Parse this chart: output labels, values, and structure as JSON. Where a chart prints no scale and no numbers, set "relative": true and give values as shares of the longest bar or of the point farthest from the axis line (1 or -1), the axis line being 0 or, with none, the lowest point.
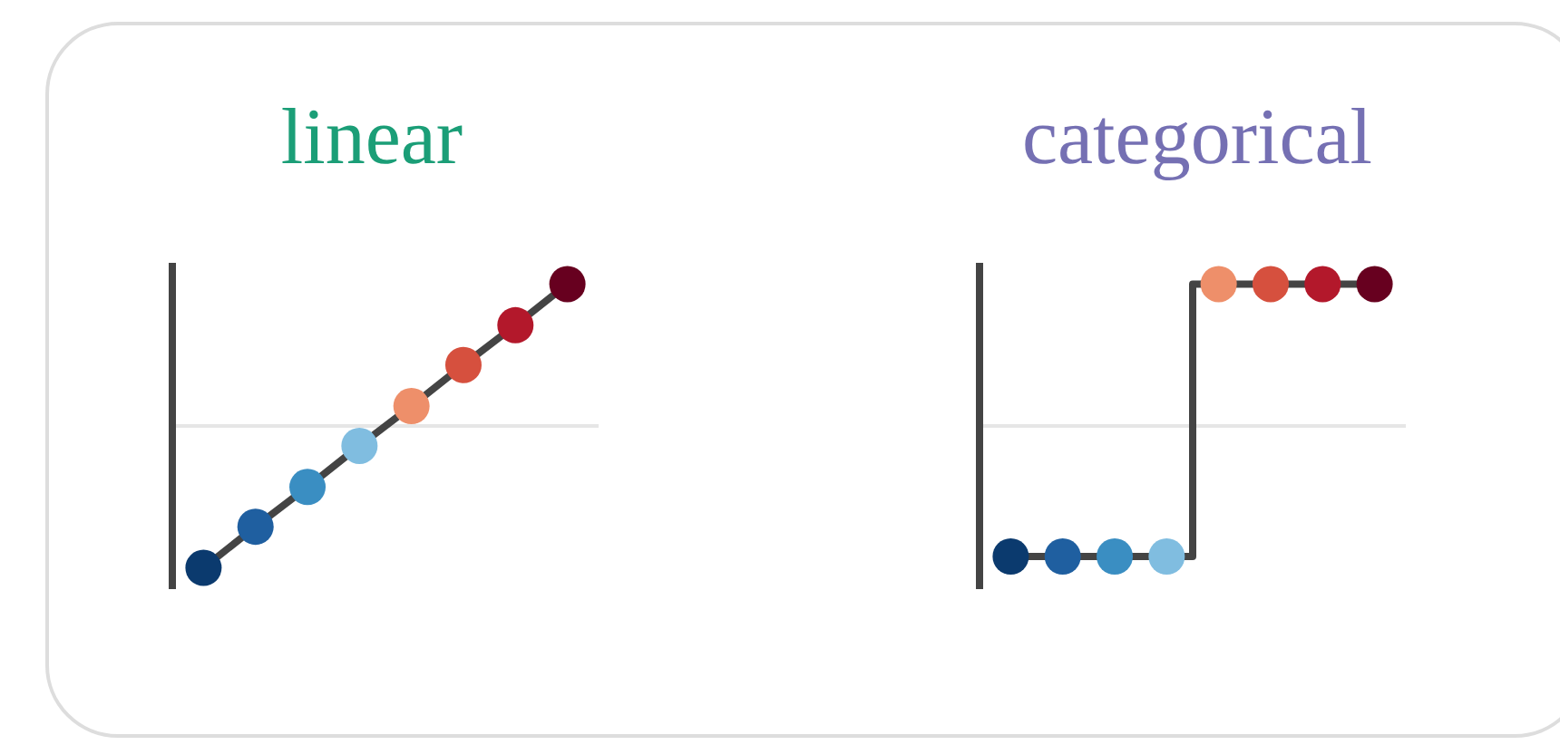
{
  "chart_data": [
    {
      "type": "line",
      "title": "linear",
      "relative": true,
      "categories": [
        null,
        null,
        null,
        null,
        null,
        null,
        null,
        null
      ],
      "marker": "circle",
      "series": [
        {
          "color": "#444444",
          "values": [
            -1,
            -0.71,
            -0.43,
            -0.14,
            0.14,
            0.43,
            0.71,
            1
          ],
          "colors": [
            "#0b3a6e",
            "#1f5fa0",
            "#3a8ec2",
            "#80bde0",
            "#ee8f6a",
            "#d6503e",
            "#b3182b",
            "#67001f"
          ]
        }
      ],
      "ref_lines": [
        {
          "axis": "y",
          "value": 0,
          "color": "#e6e6e6"
        }
      ]
    },
    {
      "type": "step",
      "title": "categorical",
      "relative": true,
      "categories": [
        null,
        null,
        null,
        null,
        null,
        null,
        null,
        null
      ],
      "marker": "circle",
      "series": [
        {
          "color": "#444444",
          "values": [
            -0.92,
            -0.92,
            -0.92,
            -0.92,
            1,
            1,
            1,
            1
          ],
          "colors": [
            "#0b3a6e",
            "#1f5fa0",
            "#3a8ec2",
            "#80bde0",
            "#ee8f6a",
            "#d6503e",
            "#b3182b",
            "#67001f"
          ]
        }
      ],
      "ref_lines": [
        {
          "axis": "y",
          "value": 0,
          "color": "#e6e6e6"
        }
      ]
    }
  ]
}
